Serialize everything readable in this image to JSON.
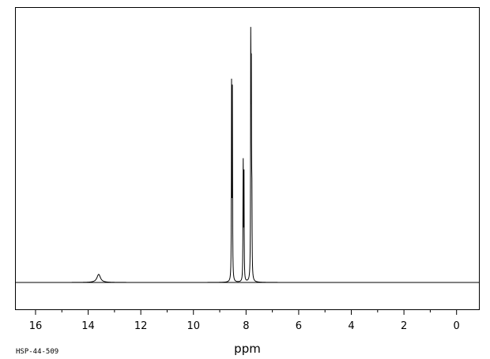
{
  "chart_data": {
    "type": "line",
    "xlabel": "ppm",
    "xlim": [
      16.75,
      -0.85
    ],
    "x_reversed": true,
    "ylim": [
      -0.1,
      1.0
    ],
    "baseline": 0,
    "grid": false,
    "legend": "none",
    "ticks": [
      16,
      14,
      12,
      10,
      8,
      6,
      4,
      2,
      0
    ],
    "tick_labels": [
      "16",
      "14",
      "12",
      "10",
      "8",
      "6",
      "4",
      "2",
      "0"
    ],
    "minor_ticks": [
      15,
      13,
      11,
      9,
      7,
      5,
      3,
      1
    ],
    "peaks": [
      {
        "ppm": 13.6,
        "height": 0.032,
        "width": 0.08
      },
      {
        "ppm": 8.55,
        "height": 0.76,
        "width": 0.008
      },
      {
        "ppm": 8.52,
        "height": 0.73,
        "width": 0.008
      },
      {
        "ppm": 8.11,
        "height": 0.49,
        "width": 0.008
      },
      {
        "ppm": 8.08,
        "height": 0.45,
        "width": 0.008
      },
      {
        "ppm": 7.82,
        "height": 0.99,
        "width": 0.008
      },
      {
        "ppm": 7.8,
        "height": 0.72,
        "width": 0.008
      },
      {
        "ppm": 7.78,
        "height": 0.33,
        "width": 0.008
      }
    ]
  },
  "footer": {
    "code": "HSP-44-509"
  }
}
